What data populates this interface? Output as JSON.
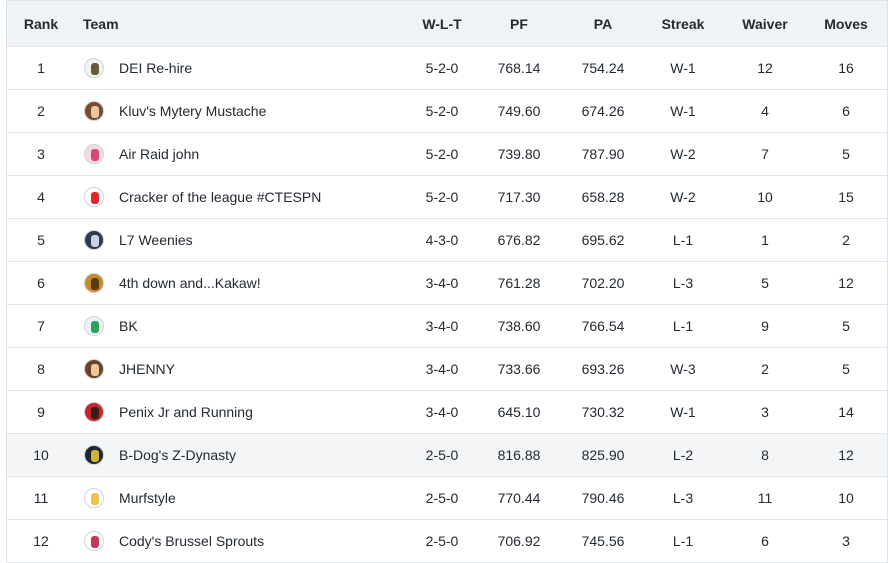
{
  "columns": {
    "rank": "Rank",
    "team": "Team",
    "wlt": "W-L-T",
    "pf": "PF",
    "pa": "PA",
    "streak": "Streak",
    "waiver": "Waiver",
    "moves": "Moves"
  },
  "rows": [
    {
      "rank": "1",
      "team": "DEI Re-hire",
      "wlt": "5-2-0",
      "pf": "768.14",
      "pa": "754.24",
      "streak": "W-1",
      "waiver": "12",
      "moves": "16",
      "avatar": {
        "icon": "trophy-avatar-icon",
        "bg": "#f3f3f3",
        "fg": "#6b5a3a"
      }
    },
    {
      "rank": "2",
      "team": "Kluv's Mytery Mustache",
      "wlt": "5-2-0",
      "pf": "749.60",
      "pa": "674.26",
      "streak": "W-1",
      "waiver": "4",
      "moves": "6",
      "avatar": {
        "icon": "mustache-face-avatar-icon",
        "bg": "#7a4a2b",
        "fg": "#e8c7a0"
      }
    },
    {
      "rank": "3",
      "team": "Air Raid john",
      "wlt": "5-2-0",
      "pf": "739.80",
      "pa": "787.90",
      "streak": "W-2",
      "waiver": "7",
      "moves": "5",
      "avatar": {
        "icon": "pink-flower-avatar-icon",
        "bg": "#f5d9e3",
        "fg": "#d9487a"
      }
    },
    {
      "rank": "4",
      "team": "Cracker of the league #CTESPN",
      "wlt": "5-2-0",
      "pf": "717.30",
      "pa": "658.28",
      "streak": "W-2",
      "waiver": "10",
      "moves": "15",
      "avatar": {
        "icon": "red-cup-avatar-icon",
        "bg": "#ffffff",
        "fg": "#e3262c"
      }
    },
    {
      "rank": "5",
      "team": "L7 Weenies",
      "wlt": "4-3-0",
      "pf": "676.82",
      "pa": "695.62",
      "streak": "L-1",
      "waiver": "1",
      "moves": "2",
      "avatar": {
        "icon": "dark-logo-avatar-icon",
        "bg": "#2b3a55",
        "fg": "#c9d2e0"
      }
    },
    {
      "rank": "6",
      "team": "4th down and...Kakaw!",
      "wlt": "3-4-0",
      "pf": "761.28",
      "pa": "702.20",
      "streak": "L-3",
      "waiver": "5",
      "moves": "12",
      "avatar": {
        "icon": "bird-avatar-icon",
        "bg": "#c88a2c",
        "fg": "#5a3a12"
      }
    },
    {
      "rank": "7",
      "team": "BK",
      "wlt": "3-4-0",
      "pf": "738.60",
      "pa": "766.54",
      "streak": "L-1",
      "waiver": "9",
      "moves": "5",
      "avatar": {
        "icon": "mascot-avatar-icon",
        "bg": "#e8f1fa",
        "fg": "#2aa058"
      }
    },
    {
      "rank": "8",
      "team": "JHENNY",
      "wlt": "3-4-0",
      "pf": "733.66",
      "pa": "693.26",
      "streak": "W-3",
      "waiver": "2",
      "moves": "5",
      "avatar": {
        "icon": "face-avatar-icon",
        "bg": "#6b4423",
        "fg": "#f0c99a"
      }
    },
    {
      "rank": "9",
      "team": "Penix Jr and Running",
      "wlt": "3-4-0",
      "pf": "645.10",
      "pa": "730.32",
      "streak": "W-1",
      "waiver": "3",
      "moves": "14",
      "avatar": {
        "icon": "red-player-avatar-icon",
        "bg": "#c3252d",
        "fg": "#3a1a1a"
      }
    },
    {
      "rank": "10",
      "team": "B-Dog's Z-Dynasty",
      "wlt": "2-5-0",
      "pf": "816.88",
      "pa": "825.90",
      "streak": "L-2",
      "waiver": "8",
      "moves": "12",
      "highlight": true,
      "avatar": {
        "icon": "gold-emblem-avatar-icon",
        "bg": "#1f2630",
        "fg": "#d4b23a"
      }
    },
    {
      "rank": "11",
      "team": "Murfstyle",
      "wlt": "2-5-0",
      "pf": "770.44",
      "pa": "790.46",
      "streak": "L-3",
      "waiver": "11",
      "moves": "10",
      "avatar": {
        "icon": "cartoon-avatar-icon",
        "bg": "#ffffff",
        "fg": "#f2c24a"
      }
    },
    {
      "rank": "12",
      "team": "Cody's Brussel Sprouts",
      "wlt": "2-5-0",
      "pf": "706.92",
      "pa": "745.56",
      "streak": "L-1",
      "waiver": "6",
      "moves": "3",
      "avatar": {
        "icon": "sneaker-avatar-icon",
        "bg": "#ffffff",
        "fg": "#c0395a"
      }
    }
  ]
}
